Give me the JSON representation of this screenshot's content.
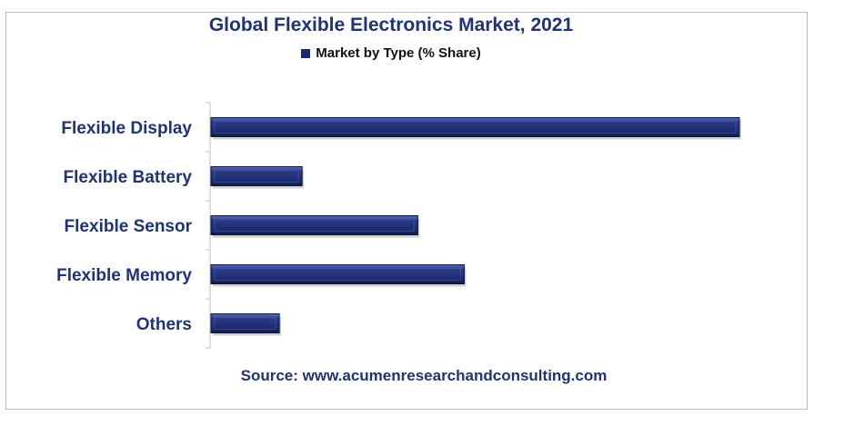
{
  "chart_data": {
    "type": "bar",
    "orientation": "horizontal",
    "title": "Global Flexible Electronics Market, 2021",
    "legend": [
      "Market by Type (% Share)"
    ],
    "legend_position": "top",
    "categories": [
      "Flexible Display",
      "Flexible Battery",
      "Flexible Sensor",
      "Flexible Memory",
      "Others"
    ],
    "series": [
      {
        "name": "Market by Type (% Share)",
        "values": [
          58,
          10,
          22.7,
          27.8,
          7.5
        ]
      }
    ],
    "xlim": [
      0,
      60
    ],
    "grid": false,
    "source": "Source: www.acumenresearchandconsulting.com",
    "colors": {
      "bar": "#1c2a6e",
      "bar_highlight": "#4a5ea8",
      "text": "#1f3470"
    }
  }
}
